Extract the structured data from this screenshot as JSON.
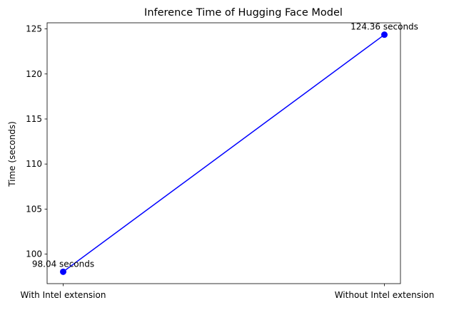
{
  "chart_data": {
    "type": "line",
    "title": "Inference Time of Hugging Face Model",
    "xlabel": "",
    "ylabel": "Time (seconds)",
    "categories": [
      "With Intel extension",
      "Without Intel extension"
    ],
    "series": [
      {
        "values": [
          98.04,
          124.36
        ],
        "color": "#0000ff",
        "marker": "circle"
      }
    ],
    "data_labels": [
      "98.04 seconds",
      "124.36 seconds"
    ],
    "ylim": [
      96.72,
      125.68
    ],
    "yticks": [
      100,
      105,
      110,
      115,
      120,
      125
    ],
    "grid": false
  }
}
